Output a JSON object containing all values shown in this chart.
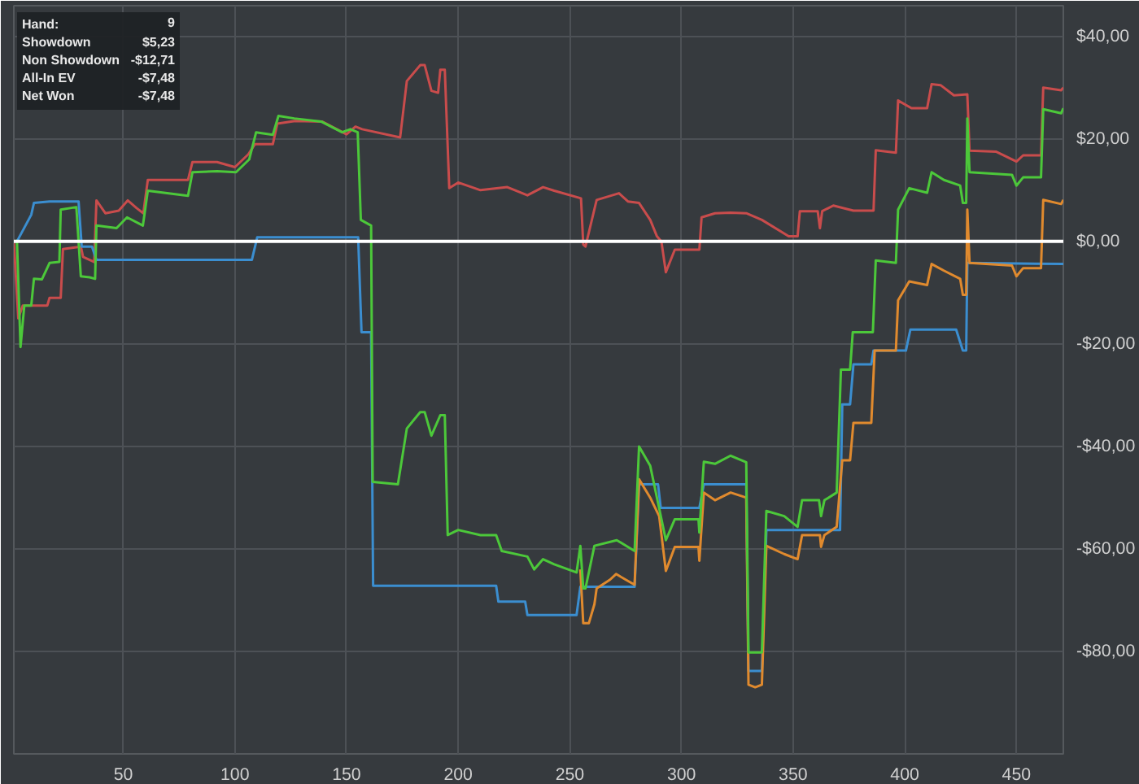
{
  "chart_data": {
    "type": "line",
    "annotations": [
      "Hand:",
      "9",
      "Showdown",
      "$5,23",
      "Non Showdown",
      "-$12,71",
      "All-In EV",
      "-$7,48",
      "Net Won",
      "-$7,48"
    ],
    "xlim": [
      1,
      471
    ],
    "ylim": [
      -100,
      46
    ],
    "xticks": [
      50,
      100,
      150,
      200,
      250,
      300,
      350,
      400,
      450
    ],
    "yticks": [
      {
        "value": 40,
        "label": "$40,00"
      },
      {
        "value": 20,
        "label": "$20,00"
      },
      {
        "value": 0,
        "label": "$0,00"
      },
      {
        "value": -20,
        "label": "-$20,00"
      },
      {
        "value": -40,
        "label": "-$40,00"
      },
      {
        "value": -60,
        "label": "-$60,00"
      },
      {
        "value": -80,
        "label": "-$80,00"
      }
    ],
    "grid": true,
    "ref_lines": [
      {
        "axis": "y",
        "value": 0,
        "color": "#ffffff"
      }
    ],
    "series": [
      {
        "color": "#c94c4c",
        "x": [
          1,
          3,
          5,
          16,
          17,
          22,
          23,
          31,
          32,
          37,
          38,
          42,
          48,
          52,
          56,
          59,
          61,
          79,
          81,
          92,
          100,
          106,
          109,
          117,
          119,
          127,
          139,
          150,
          154,
          157,
          174,
          177,
          183,
          185,
          188,
          191,
          192,
          194,
          196,
          200,
          210,
          222,
          231,
          238,
          243,
          255,
          256,
          257,
          262,
          272,
          276,
          281,
          286,
          289,
          291,
          293,
          297,
          308,
          309,
          315,
          322,
          329,
          336,
          348,
          352,
          353,
          361,
          362,
          363,
          368,
          377,
          386,
          387,
          396,
          397,
          403,
          410,
          412,
          416,
          422,
          428,
          429,
          441,
          450,
          453,
          461,
          462,
          470,
          471
        ],
        "values": [
          0,
          -15,
          -12.5,
          -12.5,
          -11,
          -11,
          -1.5,
          -1,
          -3,
          -4,
          8,
          5.5,
          6,
          8,
          6.5,
          5.5,
          12,
          12,
          15.5,
          15.5,
          14.5,
          17,
          19,
          19,
          23,
          23.5,
          23.4,
          20.9,
          22.4,
          21.9,
          20.3,
          31.3,
          34.4,
          34.4,
          29.4,
          29,
          33.5,
          33.5,
          10.4,
          11.5,
          10,
          10.6,
          9,
          10.6,
          9.9,
          8.4,
          -0.6,
          -1,
          8.1,
          9.4,
          7.8,
          7.5,
          4.2,
          1,
          0,
          -6,
          -1.6,
          -1.6,
          4.7,
          5.5,
          5.6,
          5.5,
          4.2,
          1,
          1,
          5.9,
          5.9,
          2.6,
          5.9,
          7,
          6,
          6,
          17.8,
          17.3,
          27.5,
          26,
          26,
          30.7,
          30.5,
          28.5,
          28.7,
          17.7,
          17.5,
          15.6,
          16.8,
          16.8,
          30,
          29.5,
          30
        ]
      },
      {
        "color": "#3b8ed0",
        "x": [
          1,
          2.4,
          8.8,
          10,
          17,
          30,
          31.4,
          36,
          38,
          107.6,
          110,
          155.2,
          156.7,
          161,
          161.9,
          217,
          218,
          230,
          231,
          253,
          254.7,
          279,
          281,
          289.5,
          290.7,
          308,
          310,
          329,
          330,
          336,
          338,
          371,
          372,
          375.5,
          377,
          385,
          386,
          400.5,
          402.5,
          423,
          426,
          427.5,
          428,
          471
        ],
        "values": [
          0,
          0,
          5.2,
          7.5,
          7.8,
          7.8,
          -1,
          -1,
          -3.6,
          -3.6,
          0.8,
          0.8,
          -17.7,
          -17.7,
          -67.2,
          -67.2,
          -70.3,
          -70.3,
          -72.9,
          -72.9,
          -67.4,
          -67.4,
          -47.4,
          -47.4,
          -52,
          -52,
          -47.4,
          -47.4,
          -83.8,
          -83.8,
          -56.3,
          -56.3,
          -31.8,
          -31.8,
          -24,
          -24,
          -21.3,
          -21.3,
          -17.2,
          -17.2,
          -21.3,
          -21.3,
          -4.2,
          -4.4
        ]
      },
      {
        "color": "#e08a2e",
        "x": [
          254.7,
          256,
          258.5,
          261,
          262,
          268,
          270.7,
          275,
          279,
          281,
          286,
          290,
          293,
          297,
          307.6,
          308,
          310,
          315,
          322,
          329,
          330,
          333,
          336,
          338,
          346,
          352,
          354,
          362,
          362.5,
          364,
          369.5,
          372,
          375.5,
          377,
          385,
          386.5,
          396,
          397,
          402,
          410,
          412,
          417.5,
          424.8,
          426,
          427.5,
          428,
          429,
          448,
          450,
          453,
          461,
          462,
          470,
          471
        ],
        "values": [
          -64,
          -74.5,
          -74.5,
          -70.8,
          -67.7,
          -66,
          -64.9,
          -66,
          -67,
          -46.4,
          -50,
          -53.6,
          -64.3,
          -59.6,
          -59.6,
          -62.3,
          -49,
          -50.5,
          -49,
          -50,
          -86.5,
          -87,
          -86.5,
          -59.4,
          -61,
          -62,
          -57.3,
          -57.3,
          -59.6,
          -57.3,
          -55.7,
          -42.7,
          -42.7,
          -35.4,
          -35.4,
          -21.3,
          -21.3,
          -11.5,
          -7.8,
          -8.5,
          -4.4,
          -5.7,
          -7.3,
          -10.4,
          -10.4,
          6.2,
          -4.2,
          -4.7,
          -6.8,
          -5.2,
          -5.2,
          8.1,
          7.3,
          8.1
        ]
      },
      {
        "color": "#4cc83a",
        "x": [
          1,
          2.4,
          4,
          5.7,
          8.8,
          10,
          13.6,
          17,
          21.4,
          22,
          29,
          31,
          35,
          37.4,
          38,
          47,
          51.7,
          58.8,
          61,
          79,
          81,
          92,
          100.5,
          106.4,
          109.5,
          117,
          119.5,
          126.6,
          138.6,
          148,
          151.7,
          155,
          156.4,
          161,
          161.7,
          173,
          177,
          183,
          185,
          188,
          192,
          194,
          195.3,
          200,
          210,
          217,
          219.5,
          231,
          234,
          238,
          243,
          253,
          254.7,
          256,
          257,
          261,
          271,
          279,
          281,
          286,
          290.5,
          293,
          297,
          307.6,
          308,
          310,
          315,
          322,
          329,
          330,
          336,
          338,
          346,
          352,
          354,
          361.6,
          362.5,
          364,
          369.5,
          371.4,
          375.5,
          376.7,
          385.7,
          387,
          396,
          397,
          402,
          410,
          412,
          417.5,
          424.8,
          426,
          427.5,
          428,
          429,
          448,
          450,
          453,
          461,
          462,
          470,
          471
        ],
        "values": [
          0,
          0.1,
          -20.6,
          -12.5,
          -12.5,
          -7.3,
          -7.4,
          -4.2,
          -4,
          6.2,
          6.7,
          -6.8,
          -7,
          -7.3,
          3.1,
          2.6,
          4.7,
          3.1,
          9.9,
          8.9,
          13.5,
          13.7,
          13.5,
          16,
          21.3,
          20.8,
          24.5,
          24,
          23.4,
          21.3,
          21.9,
          21.3,
          4.2,
          3.1,
          -46.9,
          -47.4,
          -36.5,
          -33.3,
          -33.3,
          -37.9,
          -33.9,
          -33.9,
          -57.3,
          -56.3,
          -57.3,
          -57.3,
          -60.4,
          -61.5,
          -64,
          -62,
          -63,
          -64.6,
          -59.4,
          -67.7,
          -67.7,
          -59.4,
          -58.3,
          -60.4,
          -40,
          -43.8,
          -53.1,
          -58.3,
          -54.2,
          -54.2,
          -56.8,
          -43,
          -43.4,
          -41.8,
          -43.1,
          -80.2,
          -80.2,
          -52.6,
          -53.6,
          -55.7,
          -50.5,
          -50.5,
          -53.6,
          -50.5,
          -49,
          -25,
          -25,
          -17.7,
          -17.7,
          -3.7,
          -4.2,
          6.2,
          10.4,
          9.5,
          13.5,
          12,
          10.9,
          7.5,
          7.5,
          24,
          13.5,
          13,
          10.9,
          12.5,
          12.5,
          25.8,
          25,
          26
        ]
      }
    ]
  }
}
